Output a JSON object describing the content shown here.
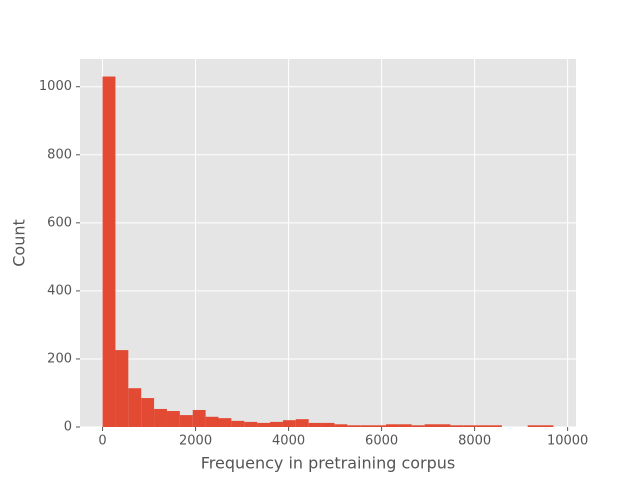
{
  "chart_data": {
    "type": "histogram",
    "x_label": "Frequency in pretraining corpus",
    "y_label": "Count",
    "bins": [
      0,
      277,
      554,
      831,
      1108,
      1385,
      1662,
      1939,
      2216,
      2493,
      2770,
      3047,
      3324,
      3601,
      3878,
      4155,
      4432,
      4709,
      4986,
      5263,
      5540,
      5817,
      6094,
      6371,
      6648,
      6925,
      7202,
      7479,
      7756,
      8033,
      8310,
      8587,
      8864,
      9141,
      9418,
      9695
    ],
    "counts": [
      1030,
      226,
      114,
      85,
      53,
      47,
      35,
      50,
      30,
      26,
      18,
      15,
      12,
      15,
      20,
      23,
      12,
      12,
      8,
      5,
      5,
      5,
      8,
      8,
      5,
      8,
      8,
      5,
      5,
      5,
      5,
      0,
      0,
      5,
      5
    ],
    "color": "#e24a33",
    "xlim": [
      -485,
      10180
    ],
    "ylim": [
      0,
      1081.5
    ],
    "xticks": [
      0,
      2000,
      4000,
      6000,
      8000,
      10000
    ],
    "yticks": [
      0,
      200,
      400,
      600,
      800,
      1000
    ],
    "grid": true
  }
}
